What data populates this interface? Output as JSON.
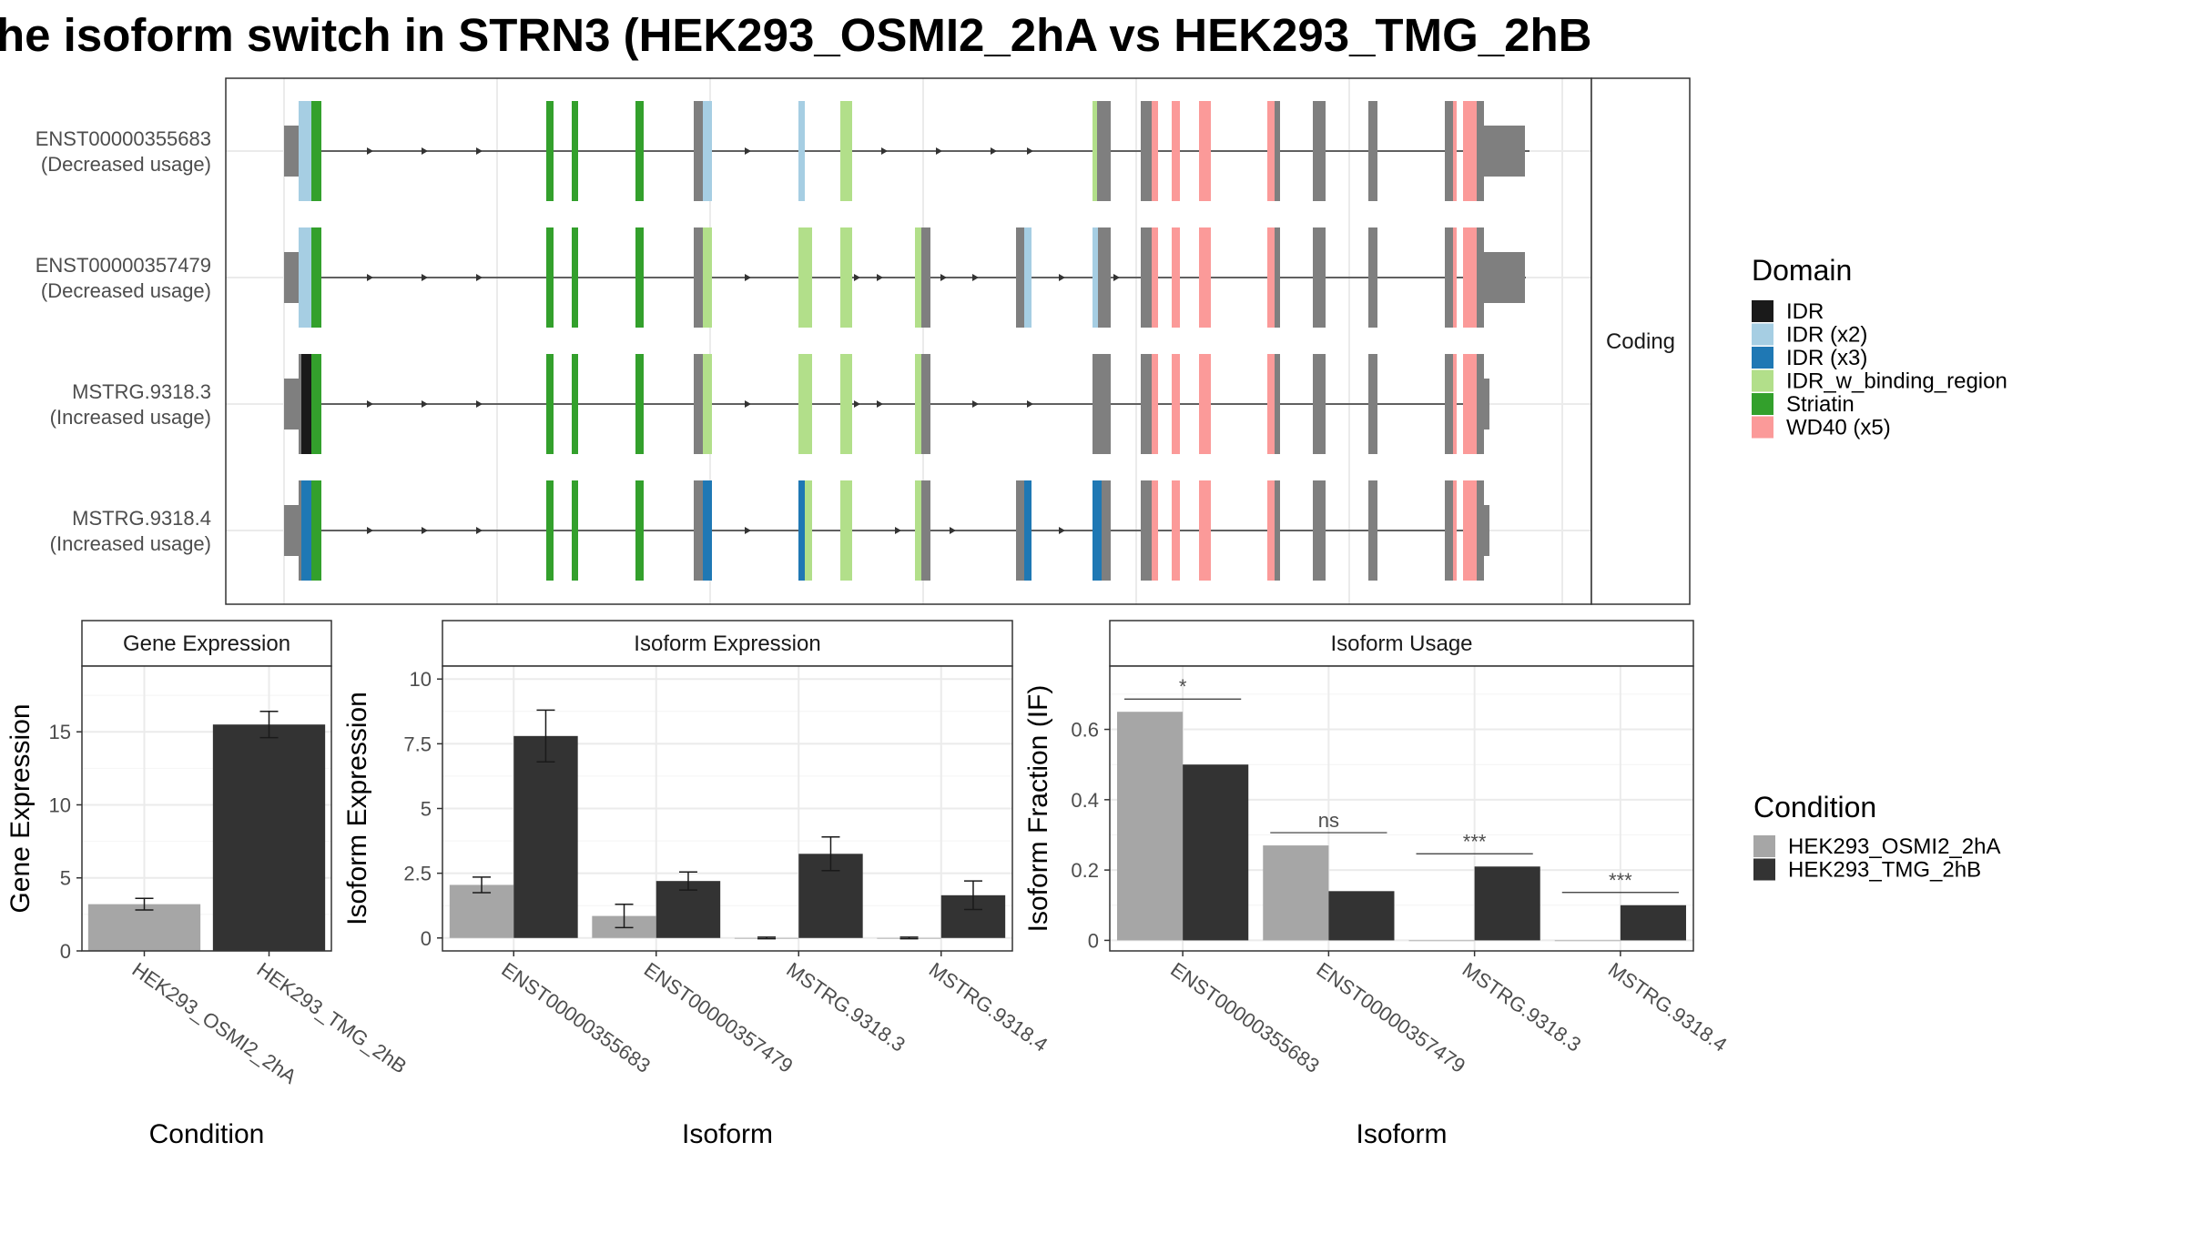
{
  "title": "he isoform switch in STRN3 (HEK293_OSMI2_2hA vs HEK293_TMG_2hB",
  "colors": {
    "IDR": "#1a1a1a",
    "IDR (x2)": "#a6cee3",
    "IDR (x3)": "#1f78b4",
    "IDR_w_binding_region": "#b2df8a",
    "Striatin": "#33a02c",
    "WD40 (x5)": "#fb9a99",
    "exon": "#7f7f7f",
    "HEK293_OSMI2_2hA": "#a6a6a6",
    "HEK293_TMG_2hB": "#333333"
  },
  "structure": {
    "facet_label": "Coding",
    "transcripts": [
      {
        "id": "ENST00000355683",
        "usage": "(Decreased usage)"
      },
      {
        "id": "ENST00000357479",
        "usage": "(Decreased usage)"
      },
      {
        "id": "MSTRG.9318.3",
        "usage": "(Increased usage)"
      },
      {
        "id": "MSTRG.9318.4",
        "usage": "(Increased usage)"
      }
    ],
    "legend_title": "Domain",
    "legend": [
      "IDR",
      "IDR (x2)",
      "IDR (x3)",
      "IDR_w_binding_region",
      "Striatin",
      "WD40 (x5)"
    ]
  },
  "chart_data": [
    {
      "type": "bar",
      "title": "Gene Expression",
      "xlabel": "Condition",
      "ylabel": "Gene Expression",
      "categories": [
        "HEK293_OSMI2_2hA",
        "HEK293_TMG_2hB"
      ],
      "values": [
        3.2,
        15.5
      ],
      "errors": [
        0.4,
        0.9
      ],
      "ylim": [
        0,
        19.5
      ],
      "yticks": [
        0,
        5,
        10,
        15
      ]
    },
    {
      "type": "bar",
      "title": "Isoform Expression",
      "xlabel": "Isoform",
      "ylabel": "Isoform Expression",
      "categories": [
        "ENST00000355683",
        "ENST00000357479",
        "MSTRG.9318.3",
        "MSTRG.9318.4"
      ],
      "series": [
        {
          "name": "HEK293_OSMI2_2hA",
          "values": [
            2.05,
            0.85,
            0.0,
            0.0
          ],
          "errors": [
            0.3,
            0.45,
            0.03,
            0.03
          ]
        },
        {
          "name": "HEK293_TMG_2hB",
          "values": [
            7.8,
            2.2,
            3.25,
            1.65
          ],
          "errors": [
            1.0,
            0.35,
            0.65,
            0.55
          ]
        }
      ],
      "ylim": [
        -0.5,
        10.5
      ],
      "yticks": [
        0.0,
        2.5,
        5.0,
        7.5,
        10.0
      ]
    },
    {
      "type": "bar",
      "title": "Isoform Usage",
      "xlabel": "Isoform",
      "ylabel": "Isoform Fraction (IF)",
      "categories": [
        "ENST00000355683",
        "ENST00000357479",
        "MSTRG.9318.3",
        "MSTRG.9318.4"
      ],
      "series": [
        {
          "name": "HEK293_OSMI2_2hA",
          "values": [
            0.65,
            0.27,
            0.0,
            0.0
          ]
        },
        {
          "name": "HEK293_TMG_2hB",
          "values": [
            0.5,
            0.14,
            0.21,
            0.1
          ]
        }
      ],
      "significance": [
        "*",
        "ns",
        "***",
        "***"
      ],
      "ylim": [
        -0.03,
        0.78
      ],
      "yticks": [
        0.0,
        0.2,
        0.4,
        0.6
      ]
    }
  ],
  "condition_legend": {
    "title": "Condition",
    "items": [
      "HEK293_OSMI2_2hA",
      "HEK293_TMG_2hB"
    ]
  }
}
